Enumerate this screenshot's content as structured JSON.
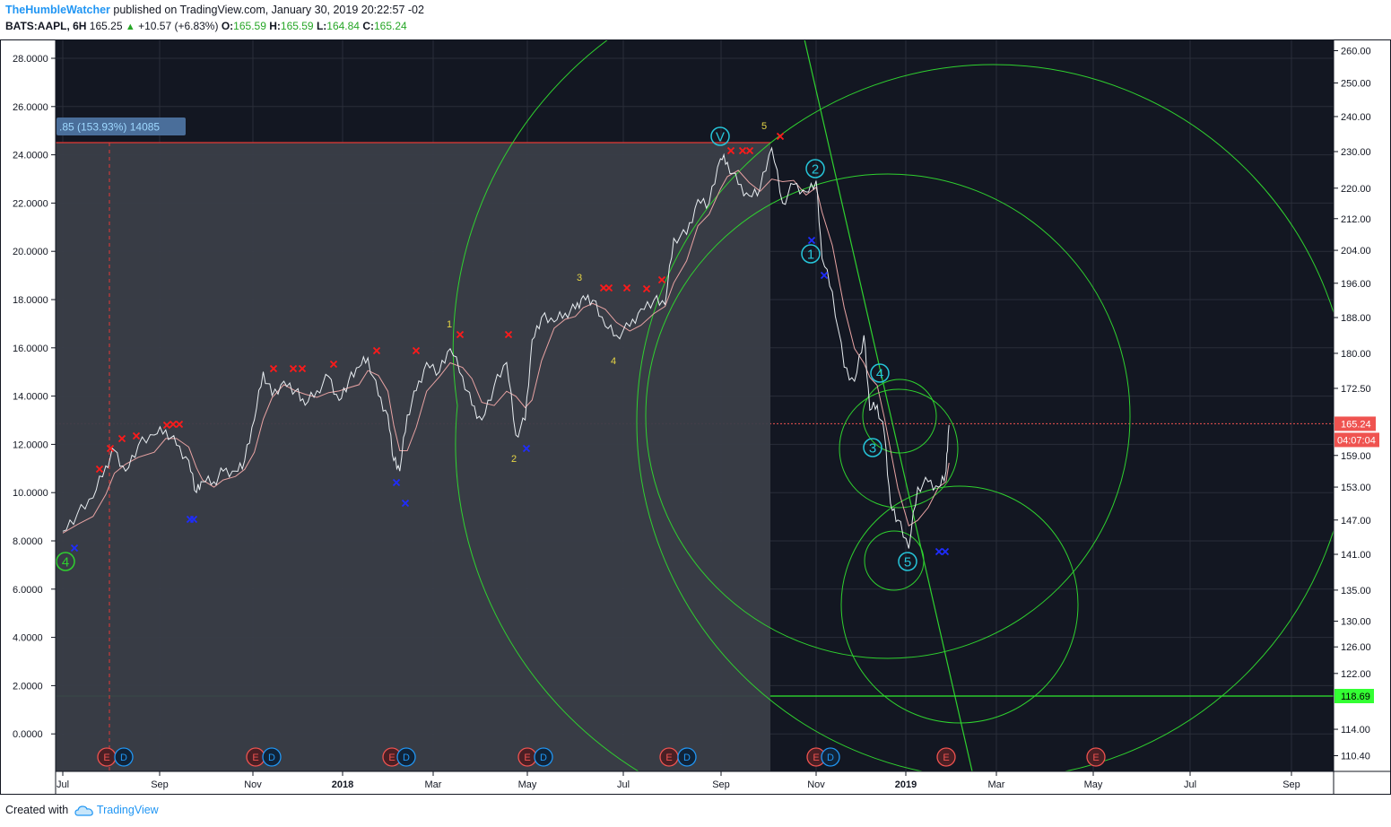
{
  "header": {
    "author": "TheHumbleWatcher",
    "published": "published on TradingView.com, January 30, 2019 20:22:57 -02",
    "symbol": "BATS:AAPL, 6H",
    "price": "165.25",
    "change": "+10.57 (+6.83%)",
    "o_label": "O:",
    "o_value": "165.59",
    "h_label": "H:",
    "h_value": "165.59",
    "l_label": "L:",
    "l_value": "164.84",
    "c_label": "C:",
    "c_value": "165.24"
  },
  "footer": {
    "created_with": "Created with",
    "brand": "TradingView"
  },
  "colors": {
    "panel_bg": "#131722",
    "grid": "#2a2e39",
    "price_white": "#e9eef2",
    "ma_pink": "#e8a3a3",
    "wave_cyan": "#26c6da",
    "fib_green": "#2fd12f",
    "red_x": "#ff1a1a",
    "blue_x": "#1f2cff",
    "wave_yellow": "#e6d545",
    "last_price": "#ef5350"
  },
  "chart_data": {
    "type": "line",
    "title": "",
    "left_axis": {
      "ticks": [
        "28.0000",
        "26.0000",
        "24.0000",
        "22.0000",
        "20.0000",
        "18.0000",
        "16.0000",
        "14.0000",
        "12.0000",
        "10.0000",
        "8.0000",
        "6.0000",
        "4.0000",
        "2.0000",
        "0.0000"
      ]
    },
    "right_axis": {
      "scale": "log",
      "ticks": [
        "260.00",
        "250.00",
        "240.00",
        "230.00",
        "220.00",
        "212.00",
        "204.00",
        "196.00",
        "188.00",
        "180.00",
        "172.50",
        "165.24",
        "159.00",
        "153.00",
        "147.00",
        "141.00",
        "135.00",
        "130.00",
        "126.00",
        "122.00",
        "118.69",
        "114.00",
        "110.40"
      ],
      "last_price": "165.24",
      "countdown": "04:07:04",
      "support": "118.69"
    },
    "x_axis": {
      "ticks": [
        "Jul",
        "Sep",
        "Nov",
        "2018",
        "Mar",
        "May",
        "Jul",
        "Sep",
        "Nov",
        "2019",
        "Mar",
        "May",
        "Jul",
        "Sep"
      ]
    },
    "measure_label": ".85 (153.93%) 14085",
    "series": [
      {
        "role": "price",
        "points": [
          [
            "2017-07-01",
            145
          ],
          [
            "2017-07-10",
            148
          ],
          [
            "2017-07-20",
            151
          ],
          [
            "2017-07-28",
            157
          ],
          [
            "2017-08-03",
            160
          ],
          [
            "2017-08-10",
            156
          ],
          [
            "2017-08-18",
            161
          ],
          [
            "2017-08-28",
            163
          ],
          [
            "2017-09-05",
            164
          ],
          [
            "2017-09-12",
            161
          ],
          [
            "2017-09-20",
            158
          ],
          [
            "2017-09-25",
            152
          ],
          [
            "2017-09-29",
            154
          ],
          [
            "2017-10-06",
            154
          ],
          [
            "2017-10-12",
            156
          ],
          [
            "2017-10-20",
            156
          ],
          [
            "2017-10-26",
            158
          ],
          [
            "2017-11-02",
            166
          ],
          [
            "2017-11-08",
            176
          ],
          [
            "2017-11-14",
            171
          ],
          [
            "2017-11-22",
            174
          ],
          [
            "2017-11-30",
            172
          ],
          [
            "2017-12-06",
            169
          ],
          [
            "2017-12-14",
            172
          ],
          [
            "2017-12-22",
            175
          ],
          [
            "2017-12-29",
            170
          ],
          [
            "2018-01-05",
            174
          ],
          [
            "2018-01-12",
            177
          ],
          [
            "2018-01-18",
            179
          ],
          [
            "2018-01-25",
            171
          ],
          [
            "2018-02-01",
            167
          ],
          [
            "2018-02-05",
            158
          ],
          [
            "2018-02-09",
            156
          ],
          [
            "2018-02-14",
            167
          ],
          [
            "2018-02-20",
            172
          ],
          [
            "2018-02-27",
            178
          ],
          [
            "2018-03-05",
            176
          ],
          [
            "2018-03-12",
            181
          ],
          [
            "2018-03-20",
            175
          ],
          [
            "2018-03-26",
            169
          ],
          [
            "2018-04-02",
            166
          ],
          [
            "2018-04-10",
            173
          ],
          [
            "2018-04-18",
            178
          ],
          [
            "2018-04-24",
            163
          ],
          [
            "2018-04-30",
            166
          ],
          [
            "2018-05-04",
            183
          ],
          [
            "2018-05-10",
            188
          ],
          [
            "2018-05-18",
            187
          ],
          [
            "2018-05-25",
            189
          ],
          [
            "2018-06-01",
            190
          ],
          [
            "2018-06-06",
            193
          ],
          [
            "2018-06-12",
            192
          ],
          [
            "2018-06-20",
            186
          ],
          [
            "2018-06-27",
            184
          ],
          [
            "2018-07-05",
            186
          ],
          [
            "2018-07-12",
            190
          ],
          [
            "2018-07-20",
            192
          ],
          [
            "2018-07-27",
            191
          ],
          [
            "2018-08-02",
            207
          ],
          [
            "2018-08-10",
            208
          ],
          [
            "2018-08-17",
            217
          ],
          [
            "2018-08-24",
            216
          ],
          [
            "2018-08-31",
            228
          ],
          [
            "2018-09-05",
            227
          ],
          [
            "2018-09-12",
            221
          ],
          [
            "2018-09-19",
            218
          ],
          [
            "2018-09-26",
            220
          ],
          [
            "2018-10-03",
            231
          ],
          [
            "2018-10-10",
            216
          ],
          [
            "2018-10-17",
            221
          ],
          [
            "2018-10-25",
            219
          ],
          [
            "2018-11-01",
            222
          ],
          [
            "2018-11-05",
            202
          ],
          [
            "2018-11-12",
            194
          ],
          [
            "2018-11-20",
            177
          ],
          [
            "2018-11-27",
            174
          ],
          [
            "2018-12-03",
            184
          ],
          [
            "2018-12-07",
            168
          ],
          [
            "2018-12-12",
            169
          ],
          [
            "2018-12-17",
            163
          ],
          [
            "2018-12-21",
            150
          ],
          [
            "2018-12-26",
            147
          ],
          [
            "2019-01-03",
            142
          ],
          [
            "2019-01-09",
            153
          ],
          [
            "2019-01-16",
            154
          ],
          [
            "2019-01-23",
            153
          ],
          [
            "2019-01-28",
            156
          ],
          [
            "2019-01-30",
            165
          ]
        ]
      }
    ],
    "wave_labels_cyan": [
      "V",
      "2",
      "1",
      "4",
      "3",
      "5"
    ],
    "wave_labels_green": [
      "4"
    ],
    "wave_labels_yellow": [
      "1",
      "2",
      "3",
      "4",
      "5"
    ],
    "event_markers": [
      "E",
      "D",
      "E",
      "D",
      "E",
      "D",
      "E",
      "D",
      "E",
      "D",
      "E",
      "D",
      "E",
      "E"
    ],
    "grid": true,
    "legend": "none"
  }
}
